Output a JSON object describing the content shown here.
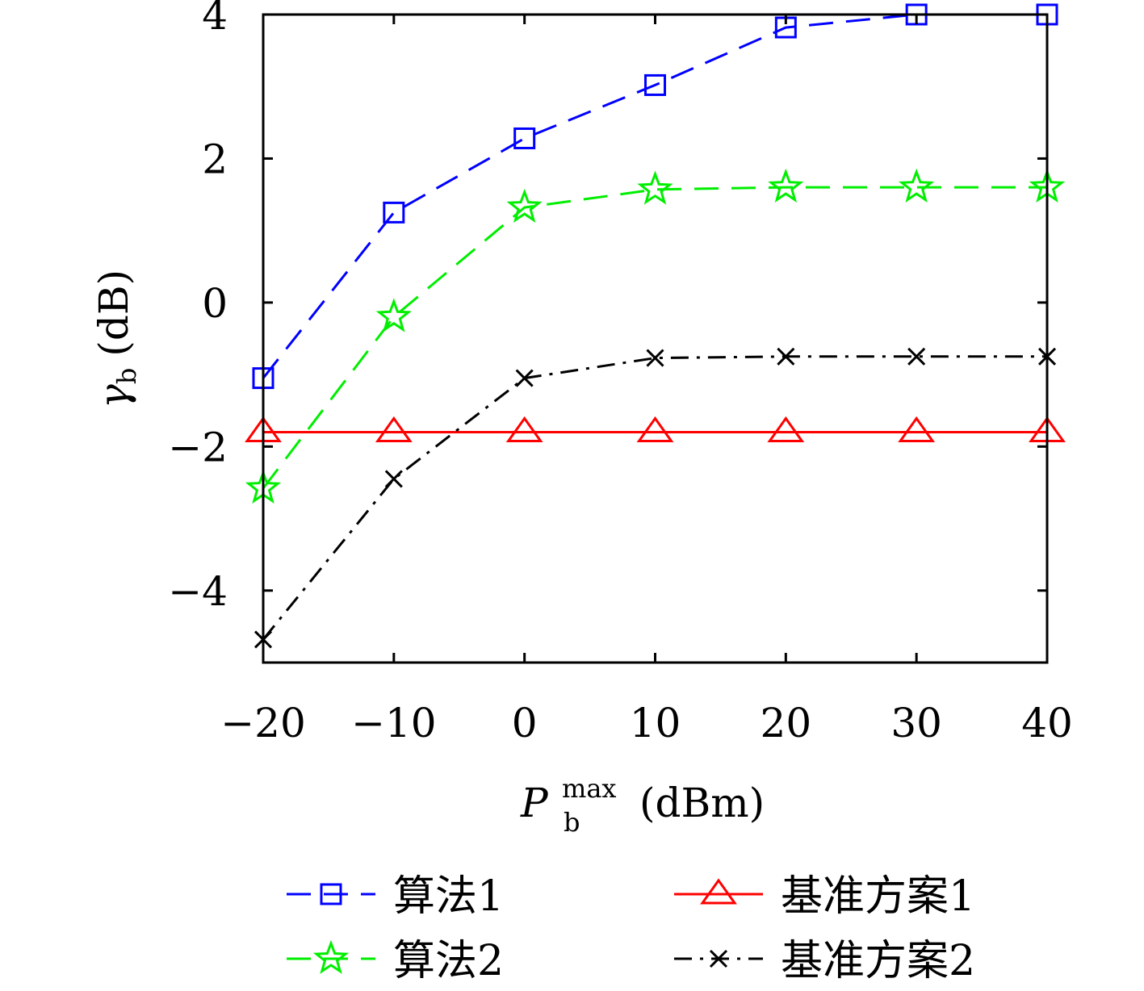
{
  "chart_data": {
    "type": "line",
    "x": [
      -20,
      -10,
      0,
      10,
      20,
      30,
      40
    ],
    "xlim": [
      -20,
      40
    ],
    "ylim": [
      -5,
      4
    ],
    "xticks": [
      -20,
      -10,
      0,
      10,
      20,
      30,
      40
    ],
    "yticks": [
      -4,
      -2,
      0,
      2,
      4
    ],
    "xtick_labels": [
      "−20",
      "−10",
      "0",
      "10",
      "20",
      "30",
      "40"
    ],
    "ytick_labels": [
      "−4",
      "−2",
      "0",
      "2",
      "4"
    ],
    "xlabel": {
      "main": "P",
      "sub": "b",
      "sup": "max",
      "unit": "(dBm)"
    },
    "ylabel": {
      "main": "γ",
      "sub": "b",
      "unit": "(dB)"
    },
    "grid": false,
    "legend_position": "bottom",
    "series": [
      {
        "name": "算法1",
        "values": [
          -1.05,
          1.25,
          2.28,
          3.02,
          3.82,
          4.0,
          4.0
        ],
        "color": "#0000ff",
        "marker": "square",
        "line_style": "dashed"
      },
      {
        "name": "算法2",
        "values": [
          -2.58,
          -0.2,
          1.32,
          1.57,
          1.6,
          1.6,
          1.6
        ],
        "color": "#00ee00",
        "marker": "star",
        "line_style": "dashed"
      },
      {
        "name": "基准方案1",
        "values": [
          -1.8,
          -1.8,
          -1.8,
          -1.8,
          -1.8,
          -1.8,
          -1.8
        ],
        "color": "#ff0000",
        "marker": "triangle",
        "line_style": "solid"
      },
      {
        "name": "基准方案2",
        "values": [
          -4.68,
          -2.45,
          -1.05,
          -0.77,
          -0.75,
          -0.75,
          -0.75
        ],
        "color": "#000000",
        "marker": "x",
        "line_style": "dashdot"
      }
    ]
  }
}
